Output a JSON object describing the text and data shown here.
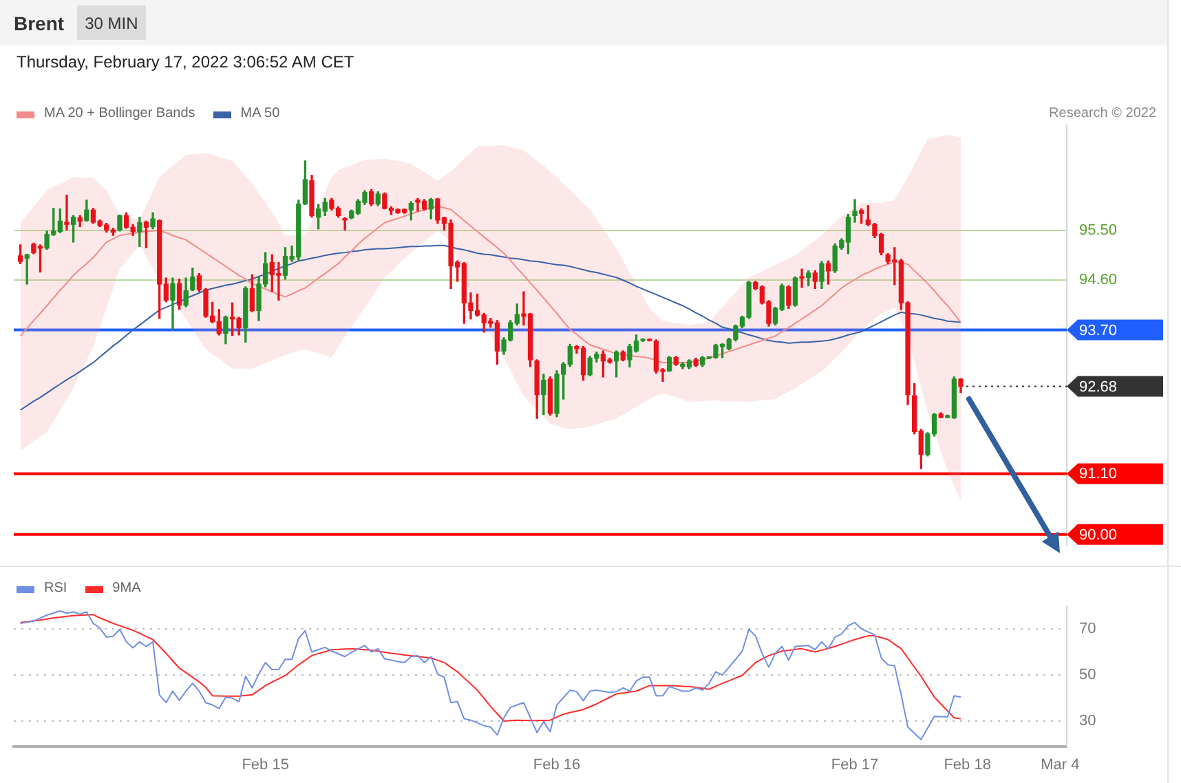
{
  "chart_data": [
    {
      "type": "candlestick",
      "title": "Brent",
      "subtitle": "Thursday, February 17, 2022 3:06:52 AM CET",
      "annotations": [
        "30 MIN",
        "Research © 2022"
      ],
      "categories": [
        null,
        null,
        null,
        null,
        null,
        null,
        null,
        null,
        null,
        null,
        null,
        null,
        null,
        null,
        null,
        null,
        null,
        null,
        null,
        null,
        null,
        null,
        null,
        null,
        null,
        null,
        null,
        null,
        null,
        null,
        null,
        null,
        null,
        null,
        null,
        null,
        null,
        null,
        null,
        null,
        null,
        null,
        null,
        null,
        null,
        null,
        null,
        null,
        null,
        null,
        null,
        null,
        null,
        null,
        null,
        null,
        null,
        null,
        null,
        null,
        null,
        null,
        null,
        null,
        null,
        null,
        null,
        null,
        null,
        null,
        null,
        null,
        null,
        null,
        null,
        null,
        null,
        null,
        null,
        null,
        null,
        null,
        null,
        null,
        null,
        null,
        null,
        null,
        null,
        null,
        null,
        null,
        null,
        null,
        null,
        null,
        null,
        null,
        null,
        null,
        null,
        null,
        null,
        null,
        null,
        null,
        null,
        null,
        null,
        null,
        null,
        null,
        null,
        null,
        null,
        null,
        null,
        null,
        null,
        null,
        null,
        null,
        null,
        null,
        null,
        null,
        null,
        null,
        null,
        null,
        null,
        null,
        null,
        null,
        null,
        null,
        null,
        null,
        null,
        null,
        null,
        null,
        null,
        null,
        null,
        null,
        null,
        null,
        null,
        null,
        null,
        null,
        null,
        null,
        null,
        null,
        null,
        null,
        null,
        null
      ],
      "ohlc": [
        null,
        [
          95.04,
          95.24,
          94.9,
          94.94
        ],
        [
          95.0,
          95.07,
          94.53,
          95.06
        ],
        [
          95.25,
          95.27,
          95.08,
          95.1
        ],
        [
          95.21,
          95.24,
          94.75,
          95.18
        ],
        [
          95.18,
          95.49,
          95.16,
          95.43
        ],
        [
          95.43,
          95.9,
          95.41,
          95.49
        ],
        [
          95.48,
          95.89,
          95.46,
          95.67
        ],
        [
          95.65,
          96.14,
          95.51,
          95.61
        ],
        [
          95.61,
          95.77,
          95.29,
          95.74
        ],
        [
          95.73,
          95.77,
          95.57,
          95.67
        ],
        [
          95.68,
          96.05,
          95.67,
          95.87
        ],
        [
          95.87,
          95.9,
          95.63,
          95.65
        ],
        [
          95.67,
          95.69,
          95.57,
          95.59
        ],
        [
          95.6,
          95.63,
          95.47,
          95.51
        ],
        [
          95.51,
          95.54,
          95.41,
          95.47
        ],
        [
          95.51,
          95.78,
          95.49,
          95.77
        ],
        [
          95.77,
          95.82,
          95.54,
          95.56
        ],
        [
          95.56,
          95.61,
          95.41,
          95.48
        ],
        [
          95.48,
          95.74,
          95.21,
          95.64
        ],
        [
          95.65,
          95.67,
          95.19,
          95.56
        ],
        [
          95.57,
          95.82,
          95.53,
          95.71
        ],
        [
          95.68,
          95.69,
          93.91,
          94.53
        ],
        [
          94.53,
          94.64,
          94.21,
          94.24
        ],
        [
          94.24,
          94.64,
          93.71,
          94.54
        ],
        [
          94.54,
          94.62,
          94.07,
          94.15
        ],
        [
          94.15,
          94.64,
          94.12,
          94.41
        ],
        [
          94.43,
          94.82,
          94.41,
          94.66
        ],
        [
          94.68,
          94.72,
          94.4,
          94.43
        ],
        [
          94.43,
          94.45,
          93.93,
          93.95
        ],
        [
          93.95,
          94.2,
          93.83,
          93.85
        ],
        [
          93.85,
          94.07,
          93.61,
          93.64
        ],
        [
          93.64,
          93.95,
          93.45,
          93.93
        ],
        [
          93.93,
          94.19,
          93.6,
          93.9
        ],
        [
          93.91,
          93.93,
          93.61,
          93.74
        ],
        [
          93.74,
          94.48,
          93.48,
          94.45
        ],
        [
          94.45,
          94.7,
          94.03,
          94.05
        ],
        [
          94.05,
          94.66,
          93.87,
          94.53
        ],
        [
          94.53,
          95.1,
          94.48,
          94.9
        ],
        [
          94.92,
          95.06,
          94.4,
          94.7
        ],
        [
          94.72,
          94.92,
          94.24,
          94.69
        ],
        [
          94.69,
          95.19,
          94.62,
          95.03
        ],
        [
          94.98,
          95.22,
          94.94,
          95.03
        ],
        [
          95.02,
          96.05,
          94.95,
          95.98
        ],
        [
          95.98,
          96.76,
          95.97,
          96.42
        ],
        [
          96.4,
          96.5,
          95.74,
          95.77
        ],
        [
          95.74,
          95.97,
          95.53,
          95.89
        ],
        [
          95.85,
          96.08,
          95.77,
          96.01
        ],
        [
          96.05,
          96.08,
          95.87,
          95.9
        ],
        [
          95.9,
          95.93,
          95.74,
          95.77
        ],
        [
          95.71,
          95.73,
          95.51,
          95.69
        ],
        [
          95.73,
          95.87,
          95.71,
          95.85
        ],
        [
          95.81,
          96.06,
          95.79,
          96.03
        ],
        [
          96.01,
          96.22,
          95.97,
          96.19
        ],
        [
          96.2,
          96.24,
          95.95,
          95.98
        ],
        [
          95.98,
          96.2,
          95.95,
          96.16
        ],
        [
          96.16,
          96.18,
          95.89,
          95.9
        ],
        [
          95.9,
          95.93,
          95.79,
          95.86
        ],
        [
          95.88,
          95.89,
          95.81,
          95.82
        ],
        [
          95.88,
          95.89,
          95.81,
          95.83
        ],
        [
          95.87,
          96.02,
          95.69,
          95.99
        ],
        [
          96.05,
          96.08,
          95.85,
          96.01
        ],
        [
          96.03,
          96.06,
          95.87,
          95.89
        ],
        [
          95.89,
          96.08,
          95.71,
          96.06
        ],
        [
          96.07,
          96.08,
          95.63,
          95.69
        ],
        [
          95.73,
          95.74,
          95.51,
          95.63
        ],
        [
          95.63,
          95.69,
          94.45,
          94.86
        ],
        [
          94.92,
          94.95,
          94.58,
          94.84
        ],
        [
          94.9,
          94.92,
          93.82,
          94.19
        ],
        [
          94.19,
          94.37,
          93.9,
          94.05
        ],
        [
          94.05,
          94.35,
          93.95,
          93.97
        ],
        [
          93.97,
          94.0,
          93.66,
          93.83
        ],
        [
          93.86,
          93.91,
          93.75,
          93.82
        ],
        [
          93.83,
          93.87,
          93.08,
          93.32
        ],
        [
          93.32,
          93.56,
          93.26,
          93.52
        ],
        [
          93.52,
          93.87,
          93.5,
          93.83
        ],
        [
          93.82,
          94.17,
          93.79,
          93.98
        ],
        [
          93.99,
          94.39,
          93.79,
          93.95
        ],
        [
          93.99,
          94.0,
          93.04,
          93.16
        ],
        [
          93.14,
          93.16,
          92.1,
          92.53
        ],
        [
          92.53,
          92.9,
          92.17,
          92.79
        ],
        [
          92.81,
          92.85,
          92.16,
          92.19
        ],
        [
          92.19,
          92.96,
          92.13,
          92.9
        ],
        [
          92.9,
          93.11,
          92.45,
          93.08
        ],
        [
          93.08,
          93.44,
          93.04,
          93.4
        ],
        [
          93.4,
          93.42,
          93.28,
          93.36
        ],
        [
          93.37,
          93.4,
          92.79,
          92.89
        ],
        [
          92.89,
          93.22,
          92.87,
          93.19
        ],
        [
          93.19,
          93.3,
          93.12,
          93.26
        ],
        [
          93.26,
          93.32,
          92.85,
          93.14
        ],
        [
          93.16,
          93.19,
          93.1,
          93.12
        ],
        [
          93.14,
          93.32,
          92.85,
          93.3
        ],
        [
          93.3,
          93.32,
          93.14,
          93.16
        ],
        [
          93.16,
          93.44,
          93.03,
          93.4
        ],
        [
          93.32,
          93.61,
          93.3,
          93.5
        ],
        [
          93.51,
          93.54,
          93.49,
          93.52
        ],
        [
          93.52,
          93.53,
          93.5,
          93.51
        ],
        [
          93.5,
          93.52,
          92.92,
          92.96
        ],
        [
          92.98,
          93.0,
          92.77,
          92.95
        ],
        [
          92.96,
          93.22,
          92.95,
          93.2
        ],
        [
          93.2,
          93.22,
          93.06,
          93.08
        ],
        [
          93.04,
          93.11,
          93.0,
          93.08
        ],
        [
          93.03,
          93.16,
          93.0,
          93.14
        ],
        [
          93.16,
          93.19,
          93.04,
          93.06
        ],
        [
          93.07,
          93.22,
          93.04,
          93.2
        ],
        [
          93.19,
          93.21,
          93.18,
          93.2
        ],
        [
          93.2,
          93.44,
          93.19,
          93.42
        ],
        [
          93.4,
          93.45,
          93.2,
          93.44
        ],
        [
          93.36,
          93.55,
          93.34,
          93.53
        ],
        [
          93.53,
          93.79,
          93.5,
          93.77
        ],
        [
          93.77,
          93.95,
          93.74,
          93.93
        ],
        [
          93.93,
          94.58,
          93.91,
          94.56
        ],
        [
          94.56,
          94.58,
          94.43,
          94.45
        ],
        [
          94.48,
          94.5,
          94.17,
          94.19
        ],
        [
          94.21,
          94.23,
          93.77,
          93.82
        ],
        [
          93.82,
          94.11,
          93.79,
          94.09
        ],
        [
          94.07,
          94.53,
          94.05,
          94.5
        ],
        [
          94.48,
          94.5,
          94.09,
          94.15
        ],
        [
          94.15,
          94.66,
          94.13,
          94.64
        ],
        [
          94.66,
          94.8,
          94.47,
          94.64
        ],
        [
          94.65,
          94.77,
          94.5,
          94.73
        ],
        [
          94.73,
          94.77,
          94.45,
          94.58
        ],
        [
          94.58,
          94.94,
          94.45,
          94.9
        ],
        [
          94.9,
          94.95,
          94.53,
          94.77
        ],
        [
          94.77,
          95.26,
          94.74,
          95.22
        ],
        [
          95.19,
          95.35,
          95.16,
          95.32
        ],
        [
          95.29,
          95.79,
          95.08,
          95.74
        ],
        [
          95.77,
          96.06,
          95.65,
          95.85
        ],
        [
          95.86,
          95.89,
          95.63,
          95.81
        ],
        [
          95.69,
          95.95,
          95.59,
          95.61
        ],
        [
          95.61,
          95.63,
          95.37,
          95.41
        ],
        [
          95.43,
          95.45,
          95.06,
          95.1
        ],
        [
          95.06,
          95.08,
          94.9,
          94.94
        ],
        [
          94.96,
          95.19,
          94.52,
          94.94
        ],
        [
          94.95,
          94.98,
          94.07,
          94.19
        ],
        [
          94.19,
          94.21,
          92.35,
          92.53
        ],
        [
          92.51,
          92.73,
          91.82,
          91.86
        ],
        [
          91.87,
          91.9,
          91.19,
          91.45
        ],
        [
          91.45,
          91.84,
          91.42,
          91.82
        ],
        [
          91.82,
          92.19,
          91.78,
          92.17
        ],
        [
          92.18,
          92.2,
          92.11,
          92.12
        ],
        [
          92.12,
          92.16,
          92.11,
          92.15
        ],
        [
          92.11,
          92.85,
          92.1,
          92.81
        ],
        [
          92.81,
          92.82,
          92.57,
          92.68
        ],
        null,
        null,
        null,
        null,
        null,
        null,
        null,
        null,
        null,
        null,
        null,
        null,
        null,
        null,
        null,
        null
      ],
      "colors": [
        null,
        "#e8121b",
        "#23902a",
        "#e8121b",
        "#e8121b",
        "#23902a",
        "#23902a",
        "#23902a",
        "#e8121b",
        "#23902a",
        "#e8121b",
        "#23902a",
        "#e8121b",
        "#e8121b",
        "#e8121b",
        "#e8121b",
        "#23902a",
        "#e8121b",
        "#e8121b",
        "#23902a",
        "#e8121b",
        "#23902a",
        "#e8121b",
        "#e8121b",
        "#23902a",
        "#e8121b",
        "#23902a",
        "#23902a",
        "#e8121b",
        "#e8121b",
        "#e8121b",
        "#e8121b",
        "#23902a",
        "#e8121b",
        "#e8121b",
        "#23902a",
        "#e8121b",
        "#23902a",
        "#23902a",
        "#e8121b",
        "#e8121b",
        "#23902a",
        "#23902a",
        "#23902a",
        "#23902a",
        "#e8121b",
        "#23902a",
        "#23902a",
        "#e8121b",
        "#e8121b",
        "#e8121b",
        "#23902a",
        "#23902a",
        "#23902a",
        "#e8121b",
        "#23902a",
        "#e8121b",
        "#e8121b",
        "#e8121b",
        "#e8121b",
        "#23902a",
        "#e8121b",
        "#e8121b",
        "#23902a",
        "#e8121b",
        "#e8121b",
        "#e8121b",
        "#e8121b",
        "#e8121b",
        "#e8121b",
        "#e8121b",
        "#e8121b",
        "#e8121b",
        "#e8121b",
        "#23902a",
        "#23902a",
        "#23902a",
        "#e8121b",
        "#e8121b",
        "#e8121b",
        "#23902a",
        "#e8121b",
        "#23902a",
        "#23902a",
        "#23902a",
        "#e8121b",
        "#e8121b",
        "#23902a",
        "#23902a",
        "#e8121b",
        "#e8121b",
        "#23902a",
        "#e8121b",
        "#23902a",
        "#23902a",
        "#23902a",
        "#e8121b",
        "#e8121b",
        "#e8121b",
        "#23902a",
        "#e8121b",
        "#23902a",
        "#23902a",
        "#e8121b",
        "#23902a",
        "#23902a",
        "#23902a",
        "#23902a",
        "#23902a",
        "#23902a",
        "#23902a",
        "#23902a",
        "#e8121b",
        "#e8121b",
        "#e8121b",
        "#23902a",
        "#23902a",
        "#e8121b",
        "#23902a",
        "#e8121b",
        "#23902a",
        "#e8121b",
        "#23902a",
        "#e8121b",
        "#23902a",
        "#23902a",
        "#23902a",
        "#23902a",
        "#e8121b",
        "#e8121b",
        "#e8121b",
        "#e8121b",
        "#e8121b",
        "#e8121b",
        "#e8121b",
        "#e8121b",
        "#e8121b",
        "#e8121b",
        "#23902a",
        "#23902a",
        "#e8121b",
        "#23902a",
        "#23902a",
        "#e8121b",
        null,
        null,
        null,
        null,
        null,
        null,
        null,
        null,
        null,
        null,
        null,
        null,
        null,
        null,
        null,
        null
      ],
      "series": [
        {
          "name": "MA 20 + Bollinger Bands",
          "type": "line",
          "color": "#f28b8b",
          "values": [
            null,
            93.59,
            93.73,
            93.87,
            94.0,
            94.14,
            94.28,
            94.42,
            94.55,
            94.69,
            94.8,
            94.9,
            95.01,
            95.15,
            95.29,
            95.35,
            95.41,
            95.43,
            95.45,
            95.47,
            95.48,
            95.49,
            95.5,
            95.46,
            95.41,
            95.37,
            95.33,
            95.25,
            95.17,
            95.09,
            95.01,
            94.93,
            94.85,
            94.77,
            94.69,
            94.62,
            94.54,
            94.49,
            94.44,
            94.39,
            94.34,
            94.3,
            94.35,
            94.41,
            94.46,
            94.55,
            94.64,
            94.72,
            94.81,
            94.9,
            95.02,
            95.13,
            95.25,
            95.36,
            95.45,
            95.55,
            95.64,
            95.68,
            95.72,
            95.76,
            95.8,
            95.84,
            95.87,
            95.91,
            95.94,
            95.91,
            95.88,
            95.78,
            95.68,
            95.58,
            95.48,
            95.38,
            95.29,
            95.19,
            95.09,
            94.96,
            94.82,
            94.69,
            94.55,
            94.42,
            94.28,
            94.14,
            94.0,
            93.85,
            93.71,
            93.62,
            93.52,
            93.43,
            93.39,
            93.35,
            93.31,
            93.27,
            93.25,
            93.24,
            93.22,
            93.21,
            93.19,
            93.15,
            93.11,
            93.11,
            93.11,
            93.11,
            93.11,
            93.14,
            93.16,
            93.19,
            93.23,
            93.27,
            93.31,
            93.35,
            93.39,
            93.43,
            93.47,
            93.51,
            93.55,
            93.59,
            93.67,
            93.74,
            93.82,
            93.9,
            93.98,
            94.06,
            94.14,
            94.25,
            94.35,
            94.46,
            94.54,
            94.61,
            94.69,
            94.74,
            94.8,
            94.85,
            94.89,
            94.93,
            94.91,
            94.89,
            94.77,
            94.66,
            94.54,
            94.41,
            94.27,
            94.14,
            93.99,
            93.84,
            null,
            null,
            null,
            null,
            null,
            null,
            null,
            null,
            null,
            null,
            null,
            null,
            null,
            null,
            null,
            null
          ],
          "lower": [
            null,
            91.52,
            91.6,
            91.69,
            91.77,
            91.85,
            92.05,
            92.25,
            92.45,
            92.65,
            92.9,
            93.15,
            93.4,
            93.75,
            94.1,
            94.45,
            94.8,
            94.95,
            95.09,
            95.24,
            95.03,
            94.81,
            94.6,
            94.43,
            94.25,
            94.08,
            93.9,
            93.72,
            93.53,
            93.35,
            93.26,
            93.18,
            93.09,
            93.0,
            93.0,
            93.0,
            93.0,
            93.05,
            93.1,
            93.15,
            93.2,
            93.25,
            93.28,
            93.32,
            93.35,
            93.31,
            93.28,
            93.24,
            93.2,
            93.4,
            93.58,
            93.75,
            93.93,
            94.1,
            94.28,
            94.47,
            94.65,
            94.76,
            94.88,
            94.99,
            95.1,
            95.2,
            95.3,
            95.4,
            95.5,
            95.4,
            95.3,
            94.98,
            94.65,
            94.33,
            94.0,
            93.8,
            93.6,
            93.4,
            93.2,
            92.97,
            92.73,
            92.5,
            92.38,
            92.25,
            92.13,
            92.0,
            91.97,
            91.93,
            91.9,
            91.92,
            91.93,
            91.95,
            91.99,
            92.03,
            92.06,
            92.1,
            92.17,
            92.24,
            92.31,
            92.38,
            92.45,
            92.51,
            92.56,
            92.52,
            92.48,
            92.44,
            92.4,
            92.41,
            92.41,
            92.42,
            92.42,
            92.41,
            92.41,
            92.41,
            92.4,
            92.4,
            92.41,
            92.43,
            92.44,
            92.45,
            92.52,
            92.58,
            92.65,
            92.73,
            92.8,
            92.88,
            92.95,
            93.07,
            93.18,
            93.3,
            93.43,
            93.57,
            93.7,
            93.8,
            93.9,
            94.0,
            94.05,
            94.1,
            93.85,
            93.6,
            93.13,
            92.67,
            92.2,
            91.85,
            91.5,
            91.15,
            90.88,
            90.6,
            null,
            null,
            null,
            null,
            null,
            null,
            null,
            null,
            null,
            null,
            null,
            null,
            null,
            null,
            null,
            null
          ],
          "upper": [
            null,
            95.64,
            95.79,
            95.94,
            96.08,
            96.23,
            96.29,
            96.35,
            96.41,
            96.47,
            96.46,
            96.46,
            96.45,
            96.34,
            96.23,
            96.0,
            95.76,
            95.74,
            95.72,
            95.7,
            95.96,
            96.21,
            96.47,
            96.57,
            96.67,
            96.77,
            96.87,
            96.88,
            96.89,
            96.9,
            96.87,
            96.83,
            96.8,
            96.76,
            96.62,
            96.49,
            96.35,
            96.17,
            96.0,
            95.82,
            95.64,
            95.41,
            95.41,
            95.41,
            95.41,
            95.68,
            95.94,
            96.21,
            96.47,
            96.59,
            96.64,
            96.68,
            96.73,
            96.78,
            96.79,
            96.79,
            96.8,
            96.78,
            96.76,
            96.73,
            96.71,
            96.63,
            96.56,
            96.48,
            96.4,
            96.49,
            96.57,
            96.68,
            96.8,
            96.91,
            97.02,
            97.03,
            97.03,
            97.04,
            97.04,
            97.01,
            96.98,
            96.95,
            96.86,
            96.76,
            96.67,
            96.57,
            96.46,
            96.34,
            96.23,
            96.11,
            96.0,
            95.88,
            95.7,
            95.53,
            95.35,
            95.17,
            94.96,
            94.74,
            94.53,
            94.31,
            94.1,
            93.98,
            93.86,
            93.84,
            93.83,
            93.81,
            93.79,
            93.81,
            93.82,
            93.84,
            93.98,
            94.11,
            94.25,
            94.38,
            94.52,
            94.65,
            94.71,
            94.76,
            94.82,
            94.88,
            94.94,
            94.99,
            95.05,
            95.14,
            95.23,
            95.32,
            95.41,
            95.53,
            95.64,
            95.76,
            95.84,
            95.92,
            96.0,
            96.0,
            96.0,
            96.0,
            96.03,
            96.05,
            96.26,
            96.47,
            96.7,
            96.93,
            97.16,
            97.18,
            97.21,
            97.23,
            97.21,
            97.18,
            null,
            null,
            null,
            null,
            null,
            null,
            null,
            null,
            null,
            null,
            null,
            null,
            null,
            null,
            null,
            null
          ]
        },
        {
          "name": "MA 50",
          "type": "line",
          "color": "#3a62a7",
          "values": [
            null,
            92.25,
            92.33,
            92.41,
            92.48,
            92.56,
            92.64,
            92.72,
            92.8,
            92.87,
            92.95,
            93.03,
            93.11,
            93.21,
            93.31,
            93.41,
            93.5,
            93.6,
            93.7,
            93.79,
            93.88,
            93.97,
            94.06,
            94.11,
            94.16,
            94.21,
            94.27,
            94.32,
            94.37,
            94.42,
            94.45,
            94.48,
            94.51,
            94.53,
            94.56,
            94.59,
            94.62,
            94.67,
            94.71,
            94.76,
            94.81,
            94.86,
            94.9,
            94.95,
            94.97,
            95.0,
            95.02,
            95.05,
            95.07,
            95.09,
            95.1,
            95.12,
            95.13,
            95.15,
            95.16,
            95.17,
            95.17,
            95.18,
            95.19,
            95.2,
            95.21,
            95.21,
            95.22,
            95.22,
            95.23,
            95.23,
            95.2,
            95.17,
            95.15,
            95.12,
            95.09,
            95.07,
            95.06,
            95.04,
            95.02,
            95.0,
            94.99,
            94.97,
            94.95,
            94.94,
            94.92,
            94.9,
            94.88,
            94.87,
            94.85,
            94.82,
            94.79,
            94.76,
            94.74,
            94.71,
            94.68,
            94.65,
            94.6,
            94.55,
            94.49,
            94.44,
            94.39,
            94.34,
            94.29,
            94.24,
            94.19,
            94.14,
            94.08,
            94.01,
            93.95,
            93.88,
            93.82,
            93.75,
            93.72,
            93.68,
            93.65,
            93.61,
            93.58,
            93.54,
            93.51,
            93.49,
            93.48,
            93.46,
            93.47,
            93.48,
            93.48,
            93.49,
            93.5,
            93.51,
            93.54,
            93.57,
            93.61,
            93.64,
            93.67,
            93.73,
            93.79,
            93.85,
            93.91,
            93.97,
            94.02,
            94.0,
            93.99,
            93.97,
            93.94,
            93.91,
            93.89,
            93.86,
            93.85,
            93.84,
            null,
            null,
            null,
            null,
            null,
            null,
            null,
            null,
            null,
            null,
            null,
            null,
            null,
            null,
            null,
            null
          ]
        }
      ],
      "ylim": [
        89.8,
        97.4
      ],
      "yticks": [
        {
          "value": 95.5,
          "label": "95.50"
        },
        {
          "value": 94.6,
          "label": "94.60"
        }
      ],
      "ref_lines": [
        {
          "axis": "y",
          "value": 93.7,
          "label": "93.70",
          "color": "#1f5fff"
        },
        {
          "axis": "y",
          "value": 92.68,
          "label": "92.68",
          "color": "#333333",
          "line_style": "dotted"
        },
        {
          "axis": "y",
          "value": 91.1,
          "label": "91.10",
          "color": "#ff0000"
        },
        {
          "axis": "y",
          "value": 90,
          "label": "90.00",
          "color": "#ff0000"
        }
      ],
      "grid": "y",
      "legend": "top left",
      "tick_labels": "y"
    },
    {
      "type": "line",
      "categories": [
        null,
        null,
        null,
        null,
        null,
        null,
        null,
        null,
        null,
        null,
        null,
        null,
        null,
        null,
        null,
        null,
        null,
        null,
        null,
        null,
        null,
        null,
        null,
        null,
        null,
        null,
        null,
        null,
        null,
        null,
        null,
        null,
        null,
        null,
        null,
        null,
        null,
        null,
        "Feb 15",
        null,
        null,
        null,
        null,
        null,
        null,
        null,
        null,
        null,
        null,
        null,
        null,
        null,
        null,
        null,
        null,
        null,
        null,
        null,
        null,
        null,
        null,
        null,
        null,
        null,
        null,
        null,
        null,
        null,
        null,
        null,
        null,
        null,
        null,
        null,
        null,
        null,
        null,
        null,
        null,
        null,
        null,
        null,
        "Feb 16",
        null,
        null,
        null,
        null,
        null,
        null,
        null,
        null,
        null,
        null,
        null,
        null,
        null,
        null,
        null,
        null,
        null,
        null,
        null,
        null,
        null,
        null,
        null,
        null,
        null,
        null,
        null,
        null,
        null,
        null,
        null,
        null,
        null,
        null,
        null,
        null,
        null,
        null,
        null,
        null,
        null,
        null,
        null,
        null,
        "Feb 17",
        null,
        null,
        null,
        null,
        null,
        null,
        null,
        null,
        null,
        null,
        null,
        null,
        null,
        null,
        null,
        null,
        "Feb 18",
        null,
        null,
        null,
        null,
        null,
        null,
        null,
        null,
        null,
        null,
        null,
        null,
        null,
        "Mar 4",
        null
      ],
      "series": [
        {
          "name": "RSI",
          "color": "#6f8fe6",
          "values": [
            null,
            72.4,
            72.9,
            73.4,
            74.7,
            76.0,
            76.9,
            77.8,
            76.8,
            77.4,
            76.4,
            77.4,
            72.4,
            70.4,
            66.4,
            66.8,
            69.8,
            64.4,
            61.8,
            64.4,
            62.4,
            64.4,
            41.4,
            38.0,
            43.0,
            39.0,
            43.0,
            46.4,
            43.0,
            38.0,
            37.0,
            35.4,
            40.4,
            40.0,
            38.4,
            49.4,
            44.4,
            50.4,
            55.4,
            52.4,
            52.4,
            56.8,
            56.8,
            65.8,
            69.2,
            60.0,
            61.0,
            62.0,
            60.4,
            59.2,
            58.0,
            59.8,
            61.3,
            62.8,
            60.0,
            61.4,
            57.0,
            56.4,
            55.8,
            55.4,
            58.0,
            58.4,
            55.4,
            58.0,
            50.4,
            49.0,
            38.0,
            38.4,
            31.0,
            30.4,
            29.2,
            28.0,
            27.4,
            24.0,
            31.4,
            36.0,
            37.0,
            38.0,
            31.5,
            25.0,
            29.8,
            25.4,
            37.0,
            40.2,
            43.4,
            42.8,
            38.8,
            43.0,
            43.4,
            42.9,
            42.4,
            42.8,
            44.4,
            43.0,
            47.4,
            49.0,
            49.0,
            41.0,
            41.0,
            45.0,
            44.0,
            43.0,
            43.0,
            44.4,
            43.4,
            46.4,
            51.4,
            50.0,
            53.4,
            56.8,
            60.4,
            69.8,
            67.0,
            59.4,
            53.4,
            59.4,
            62.4,
            56.4,
            62.4,
            62.6,
            62.8,
            61.0,
            64.4,
            61.4,
            66.4,
            67.8,
            71.4,
            72.8,
            70.0,
            68.7,
            67.4,
            57.4,
            54.4,
            54.0,
            41.4,
            27.4,
            24.7,
            22.0,
            27.0,
            32.0,
            31.9,
            31.8,
            41.0,
            40.4,
            null,
            null,
            null,
            null,
            null,
            null,
            null,
            null,
            null,
            null,
            null,
            null,
            null,
            null,
            null,
            null
          ]
        },
        {
          "name": "9MA",
          "color": "#ff2b2b",
          "values": [
            null,
            72.8,
            73.1,
            73.5,
            73.8,
            74.3,
            74.8,
            75.1,
            75.5,
            75.8,
            75.9,
            76.1,
            76.2,
            74.8,
            73.6,
            72.4,
            71.4,
            70.4,
            69.4,
            68.1,
            66.7,
            65.4,
            62.4,
            59.4,
            56.2,
            53.0,
            51.0,
            49.0,
            47.0,
            44.6,
            41.0,
            40.9,
            40.8,
            40.8,
            40.8,
            41.1,
            41.4,
            43.4,
            45.4,
            46.9,
            48.3,
            49.8,
            52.1,
            54.4,
            56.4,
            58.4,
            59.3,
            60.1,
            61.0,
            61.1,
            61.3,
            61.4,
            61.2,
            61.0,
            60.8,
            60.3,
            59.9,
            59.4,
            59.1,
            58.7,
            58.4,
            58.1,
            57.7,
            57.4,
            56.4,
            55.4,
            53.4,
            51.4,
            48.7,
            46.1,
            43.4,
            39.9,
            36.4,
            33.2,
            30.0,
            30.2,
            30.4,
            30.3,
            30.3,
            30.2,
            30.3,
            30.4,
            31.7,
            33.0,
            33.7,
            34.3,
            35.0,
            36.2,
            37.4,
            38.9,
            40.3,
            41.8,
            42.2,
            42.6,
            43.0,
            44.2,
            45.4,
            45.4,
            45.4,
            45.4,
            45.3,
            45.1,
            45.0,
            44.6,
            44.2,
            43.8,
            45.1,
            46.4,
            47.5,
            48.7,
            49.8,
            52.6,
            55.4,
            56.9,
            58.4,
            59.4,
            60.4,
            60.7,
            61.1,
            61.4,
            60.7,
            60.0,
            60.8,
            61.6,
            62.4,
            63.4,
            64.4,
            65.4,
            66.2,
            67.0,
            67.0,
            66.2,
            65.4,
            63.4,
            61.4,
            57.4,
            53.4,
            49.4,
            44.9,
            40.4,
            37.4,
            34.4,
            31.4,
            31.0,
            null,
            null,
            null,
            null,
            null,
            null,
            null,
            null,
            null,
            null,
            null,
            null,
            null,
            null,
            null,
            null
          ]
        }
      ],
      "ylim": [
        19,
        80
      ],
      "yticks": [
        30,
        50,
        70
      ],
      "grid": "y",
      "legend": "top left"
    }
  ]
}
